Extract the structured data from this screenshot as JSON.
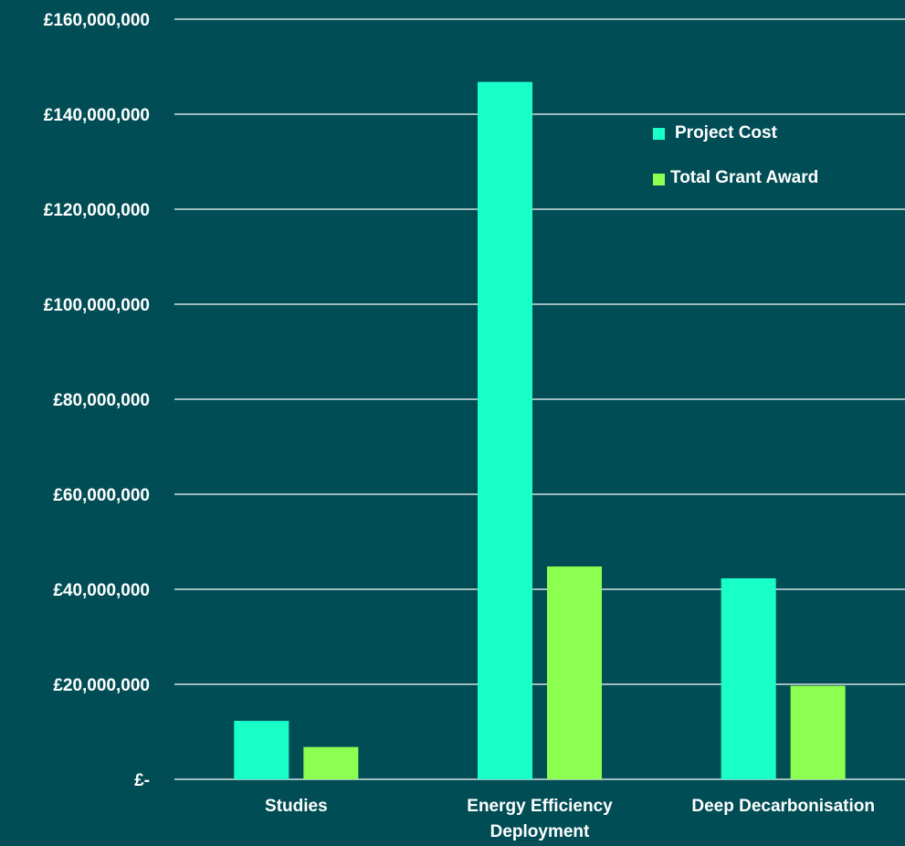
{
  "colors": {
    "background": "#004d55",
    "gridline": "#ffffff",
    "text": "#ffffff",
    "project_cost": "#19ffc8",
    "total_grant_award": "#8cff50"
  },
  "chart_data": {
    "type": "bar",
    "title": "",
    "xlabel": "",
    "ylabel": "",
    "categories": [
      [
        "Studies"
      ],
      [
        "Energy Efficiency",
        "Deployment"
      ],
      [
        "Deep Decarbonisation"
      ]
    ],
    "series": [
      {
        "name": "Project Cost",
        "color": "#19ffc8",
        "values": [
          12300000,
          146800000,
          42300000
        ]
      },
      {
        "name": "Total Grant Award",
        "color": "#8cff50",
        "values": [
          6800000,
          44800000,
          19700000
        ]
      }
    ],
    "ylim": [
      0,
      160000000
    ],
    "y_ticks": [
      0,
      20000000,
      40000000,
      60000000,
      80000000,
      100000000,
      120000000,
      140000000,
      160000000
    ],
    "y_tick_labels": [
      "£-",
      "£20,000,000",
      "£40,000,000",
      "£60,000,000",
      "£80,000,000",
      "£100,000,000",
      "£120,000,000",
      "£140,000,000",
      "£160,000,000"
    ],
    "grid": true,
    "legend_position": "top-right"
  }
}
